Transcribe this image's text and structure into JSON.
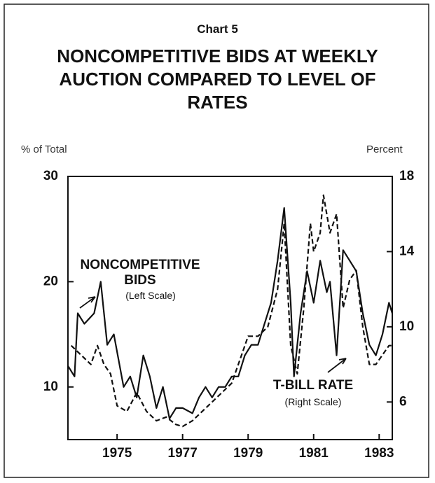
{
  "chart_data": {
    "type": "line",
    "header": "Chart 5",
    "title": "NONCOMPETITIVE BIDS AT WEEKLY AUCTION COMPARED TO LEVEL OF RATES",
    "ylabel": "% of Total",
    "y2label": "Percent",
    "annotations": [
      "NONCOMPETITIVE BIDS",
      "(Left Scale)",
      "T-BILL RATE",
      "(Right Scale)"
    ],
    "xlim": [
      1973.5,
      1983.4
    ],
    "xticks": [
      1975,
      1977,
      1979,
      1981,
      1983
    ],
    "ylim": [
      5,
      30
    ],
    "yticks": [
      10,
      20,
      30
    ],
    "y2lim": [
      4,
      18
    ],
    "y2ticks": [
      6,
      10,
      14,
      18
    ],
    "series": [
      {
        "name": "NONCOMPETITIVE BIDS",
        "color": "#111111",
        "dash": "solid",
        "x": [
          1973.5,
          1973.7,
          1973.8,
          1974.0,
          1974.3,
          1974.5,
          1974.7,
          1974.9,
          1975.2,
          1975.4,
          1975.6,
          1975.8,
          1976.0,
          1976.2,
          1976.4,
          1976.6,
          1976.8,
          1977.0,
          1977.3,
          1977.5,
          1977.7,
          1977.9,
          1978.1,
          1978.3,
          1978.5,
          1978.7,
          1978.9,
          1979.1,
          1979.3,
          1979.5,
          1979.7,
          1979.9,
          1980.1,
          1980.3,
          1980.4,
          1980.6,
          1980.8,
          1981.0,
          1981.2,
          1981.4,
          1981.5,
          1981.7,
          1981.9,
          1982.1,
          1982.3,
          1982.5,
          1982.7,
          1982.9,
          1983.1,
          1983.3,
          1983.4
        ],
        "values": [
          12,
          11,
          17,
          16,
          17,
          20,
          14,
          15,
          10,
          11,
          9,
          13,
          11,
          8,
          10,
          7,
          8,
          8,
          7.5,
          9,
          10,
          9,
          10,
          10,
          11,
          11,
          13,
          14,
          14,
          16,
          18,
          22,
          27,
          18,
          11,
          17,
          21,
          18,
          22,
          19,
          20,
          13,
          23,
          22,
          21,
          17,
          14,
          13,
          15,
          18,
          17
        ]
      },
      {
        "name": "T-BILL RATE",
        "color": "#111111",
        "dash": "dashed",
        "axis": "y2",
        "x": [
          1973.6,
          1973.9,
          1974.2,
          1974.4,
          1974.6,
          1974.8,
          1975.0,
          1975.3,
          1975.6,
          1975.9,
          1976.2,
          1976.5,
          1976.8,
          1977.0,
          1977.3,
          1977.6,
          1977.9,
          1978.2,
          1978.5,
          1978.8,
          1979.0,
          1979.3,
          1979.6,
          1979.9,
          1980.1,
          1980.3,
          1980.5,
          1980.7,
          1980.9,
          1981.0,
          1981.2,
          1981.3,
          1981.5,
          1981.7,
          1981.9,
          1982.1,
          1982.3,
          1982.5,
          1982.7,
          1982.9,
          1983.1,
          1983.3,
          1983.4
        ],
        "values": [
          9,
          8.5,
          8,
          9,
          8,
          7.5,
          5.8,
          5.5,
          6.5,
          5.5,
          5,
          5.2,
          4.8,
          4.7,
          5,
          5.5,
          6,
          6.5,
          7,
          8.5,
          9.5,
          9.5,
          10,
          12,
          15.5,
          9,
          7.5,
          11,
          15.5,
          14,
          15,
          17,
          15,
          16,
          11,
          12.5,
          13,
          10,
          8,
          8,
          8.5,
          9,
          9
        ]
      }
    ]
  }
}
